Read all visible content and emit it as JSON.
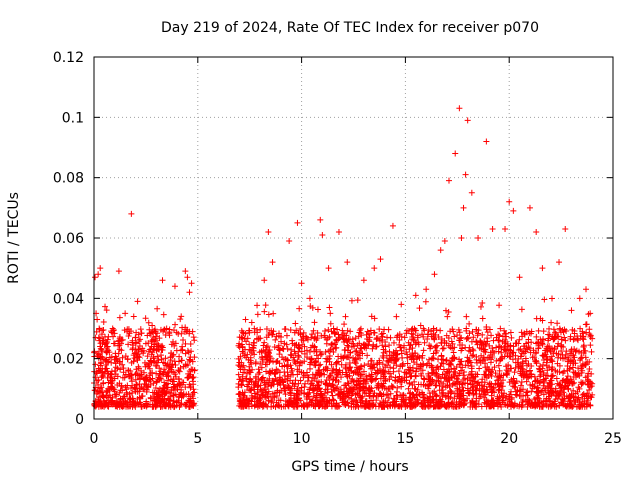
{
  "chart_data": {
    "type": "scatter",
    "title": "Day 219 of 2024, Rate Of TEC Index for receiver p070",
    "xlabel": "GPS time / hours",
    "ylabel": "ROTI / TECUs",
    "xlim": [
      0,
      25
    ],
    "ylim": [
      0,
      0.12
    ],
    "xticks": [
      0,
      5,
      10,
      15,
      20,
      25
    ],
    "xtick_labels": [
      "0",
      "5",
      "10",
      "15",
      "20",
      "25"
    ],
    "yticks": [
      0,
      0.02,
      0.04,
      0.06,
      0.08,
      0.1,
      0.12
    ],
    "ytick_labels": [
      "0",
      "0.02",
      "0.04",
      "0.06",
      "0.08",
      "0.1",
      "0.12"
    ],
    "grid": true,
    "marker": "plus",
    "color": "#ff0000",
    "data_gap_hours": [
      4.85,
      6.95
    ],
    "data_range_hours": [
      0,
      24
    ],
    "series": [
      {
        "name": "ROTI",
        "x": [
          0.05,
          0.1,
          0.15,
          0.2,
          0.25,
          0.3,
          0.4,
          0.6,
          0.9,
          1.2,
          1.3,
          1.5,
          1.8,
          2.1,
          2.5,
          2.8,
          3.3,
          3.5,
          3.9,
          4.2,
          4.4,
          4.5,
          4.6,
          4.7,
          7.1,
          7.3,
          7.6,
          8.2,
          8.4,
          8.6,
          9.4,
          9.8,
          10.0,
          10.4,
          10.9,
          11.0,
          11.3,
          11.8,
          12.2,
          13.0,
          13.5,
          13.8,
          14.4,
          14.8,
          15.5,
          16.0,
          16.4,
          16.7,
          16.9,
          17.1,
          17.4,
          17.6,
          17.7,
          17.8,
          17.9,
          18.0,
          18.2,
          18.5,
          18.9,
          19.2,
          19.8,
          20.0,
          20.2,
          20.5,
          21.0,
          21.3,
          21.6,
          22.4,
          22.7,
          23.0,
          23.4,
          23.7,
          23.9
        ],
        "y": [
          0.047,
          0.035,
          0.033,
          0.048,
          0.03,
          0.05,
          0.026,
          0.022,
          0.03,
          0.049,
          0.025,
          0.035,
          0.068,
          0.039,
          0.025,
          0.031,
          0.046,
          0.03,
          0.044,
          0.034,
          0.049,
          0.047,
          0.042,
          0.045,
          0.027,
          0.033,
          0.032,
          0.046,
          0.062,
          0.052,
          0.059,
          0.065,
          0.045,
          0.04,
          0.066,
          0.061,
          0.05,
          0.062,
          0.052,
          0.046,
          0.05,
          0.053,
          0.064,
          0.038,
          0.041,
          0.043,
          0.048,
          0.056,
          0.059,
          0.079,
          0.088,
          0.103,
          0.06,
          0.07,
          0.081,
          0.099,
          0.075,
          0.06,
          0.092,
          0.063,
          0.063,
          0.072,
          0.069,
          0.047,
          0.07,
          0.062,
          0.05,
          0.052,
          0.063,
          0.036,
          0.04,
          0.043,
          0.035
        ]
      }
    ]
  }
}
